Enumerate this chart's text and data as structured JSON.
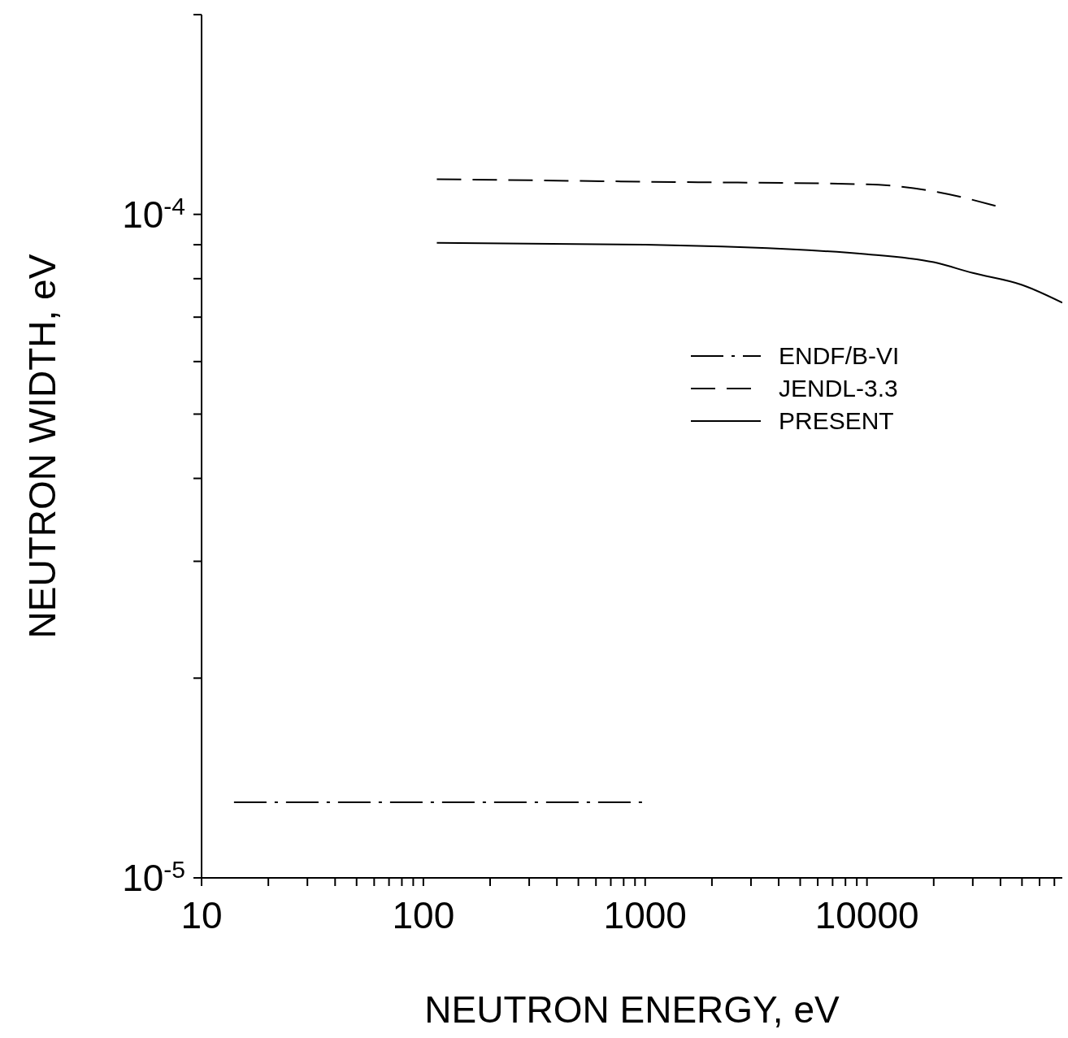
{
  "chart_data": {
    "type": "line",
    "xlabel": "NEUTRON  ENERGY, eV",
    "ylabel": "NEUTRON  WIDTH, eV",
    "log": "xy",
    "grid": false,
    "legend": "top center",
    "xlim": [
      10,
      76000
    ],
    "ylim": [
      1e-05,
      0.0002
    ],
    "xticks": [
      10,
      {
        "value": 20,
        "label": null
      },
      {
        "value": 30,
        "label": null
      },
      {
        "value": 40,
        "label": null
      },
      {
        "value": 50,
        "label": null
      },
      {
        "value": 60,
        "label": null
      },
      {
        "value": 70,
        "label": null
      },
      {
        "value": 80,
        "label": null
      },
      {
        "value": 90,
        "label": null
      },
      100,
      {
        "value": 200,
        "label": null
      },
      {
        "value": 300,
        "label": null
      },
      {
        "value": 400,
        "label": null
      },
      {
        "value": 500,
        "label": null
      },
      {
        "value": 600,
        "label": null
      },
      {
        "value": 700,
        "label": null
      },
      {
        "value": 800,
        "label": null
      },
      {
        "value": 900,
        "label": null
      },
      1000,
      {
        "value": 2000,
        "label": null
      },
      {
        "value": 3000,
        "label": null
      },
      {
        "value": 4000,
        "label": null
      },
      {
        "value": 5000,
        "label": null
      },
      {
        "value": 6000,
        "label": null
      },
      {
        "value": 7000,
        "label": null
      },
      {
        "value": 8000,
        "label": null
      },
      {
        "value": 9000,
        "label": null
      },
      10000,
      {
        "value": 20000,
        "label": null
      },
      {
        "value": 30000,
        "label": null
      },
      {
        "value": 40000,
        "label": null
      },
      {
        "value": 50000,
        "label": null
      },
      {
        "value": 60000,
        "label": null
      },
      {
        "value": 70000,
        "label": null
      }
    ],
    "yticks": [
      {
        "value": 1e-05,
        "label": "10$^{-5}$"
      },
      {
        "value": 2e-05,
        "label": null
      },
      {
        "value": 3e-05,
        "label": null
      },
      {
        "value": 4e-05,
        "label": null
      },
      {
        "value": 5e-05,
        "label": null
      },
      {
        "value": 6e-05,
        "label": null
      },
      {
        "value": 7e-05,
        "label": null
      },
      {
        "value": 8e-05,
        "label": null
      },
      {
        "value": 9e-05,
        "label": null
      },
      {
        "value": 0.0001,
        "label": "10$^{-4}$"
      },
      {
        "value": 0.0002,
        "label": null
      }
    ],
    "series": [
      {
        "name": "ENDF/B-VI",
        "color": "#000000",
        "line_style": "dashdot",
        "x": [
          14,
          1000
        ],
        "values": [
          1.3e-05,
          1.3e-05
        ]
      },
      {
        "name": "JENDL-3.3",
        "color": "#000000",
        "line_style": "dashed",
        "x": [
          115,
          1000,
          10000,
          21000,
          38000
        ],
        "values": [
          0.000113,
          0.000112,
          0.000111,
          0.000108,
          0.000103
        ]
      },
      {
        "name": "PRESENT",
        "color": "#000000",
        "line_style": "solid",
        "x": [
          115,
          1000,
          10000,
          20000,
          30000,
          50000,
          76000
        ],
        "values": [
          9.06e-05,
          9e-05,
          8.71e-05,
          8.47e-05,
          8.16e-05,
          7.83e-05,
          7.36e-05
        ]
      }
    ]
  }
}
